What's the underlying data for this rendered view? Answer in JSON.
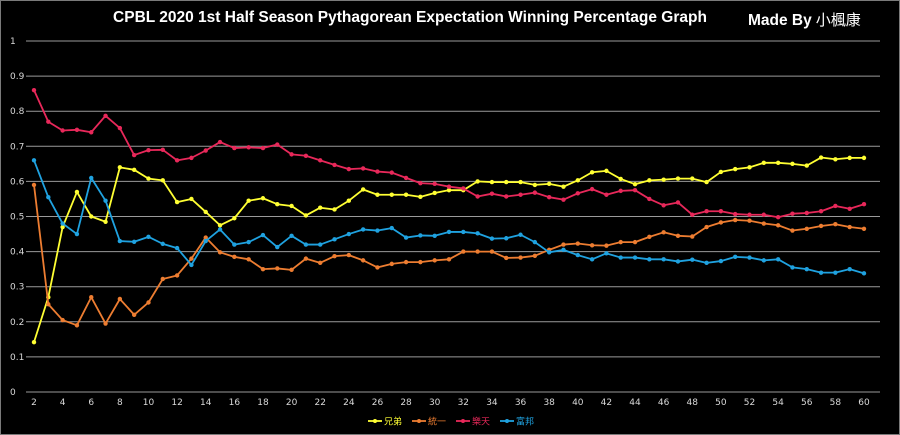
{
  "chart_data": {
    "type": "line",
    "title": "CPBL 2020 1st Half Season Pythagorean Expectation Winning Percentage Graph",
    "credit": "Made By",
    "credit_name": "小楓康",
    "xlabel": "",
    "ylabel": "",
    "ylim": [
      0,
      1
    ],
    "xlim": [
      2,
      60
    ],
    "grid": true,
    "legend_position": "bottom",
    "y_ticks": [
      "0",
      "0.1",
      "0.2",
      "0.3",
      "0.4",
      "0.5",
      "0.6",
      "0.7",
      "0.8",
      "0.9",
      "1"
    ],
    "x_ticks": [
      "2",
      "4",
      "6",
      "8",
      "10",
      "12",
      "14",
      "16",
      "18",
      "20",
      "22",
      "24",
      "26",
      "28",
      "30",
      "32",
      "34",
      "36",
      "38",
      "40",
      "42",
      "44",
      "46",
      "48",
      "50",
      "52",
      "54",
      "56",
      "58",
      "60"
    ],
    "x": [
      2,
      3,
      4,
      5,
      6,
      7,
      8,
      9,
      10,
      11,
      12,
      13,
      14,
      15,
      16,
      17,
      18,
      19,
      20,
      21,
      22,
      23,
      24,
      25,
      26,
      27,
      28,
      29,
      30,
      31,
      32,
      33,
      34,
      35,
      36,
      37,
      38,
      39,
      40,
      41,
      42,
      43,
      44,
      45,
      46,
      47,
      48,
      49,
      50,
      51,
      52,
      53,
      54,
      55,
      56,
      57,
      58,
      59,
      60
    ],
    "series": [
      {
        "name": "兄弟",
        "color": "#ffff33",
        "values": [
          0.142,
          0.27,
          0.47,
          0.57,
          0.5,
          0.485,
          0.64,
          0.633,
          0.608,
          0.603,
          0.541,
          0.55,
          0.513,
          0.475,
          0.495,
          0.545,
          0.552,
          0.535,
          0.53,
          0.503,
          0.525,
          0.52,
          0.545,
          0.577,
          0.562,
          0.562,
          0.562,
          0.556,
          0.567,
          0.575,
          0.575,
          0.6,
          0.598,
          0.598,
          0.598,
          0.59,
          0.593,
          0.585,
          0.603,
          0.626,
          0.63,
          0.607,
          0.592,
          0.603,
          0.605,
          0.608,
          0.608,
          0.598,
          0.627,
          0.635,
          0.64,
          0.653,
          0.653,
          0.65,
          0.645,
          0.668,
          0.663,
          0.667,
          0.667
        ]
      },
      {
        "name": "統一",
        "color": "#ed7d31",
        "values": [
          0.59,
          0.25,
          0.205,
          0.19,
          0.27,
          0.195,
          0.265,
          0.22,
          0.255,
          0.322,
          0.332,
          0.38,
          0.44,
          0.398,
          0.385,
          0.378,
          0.35,
          0.352,
          0.348,
          0.38,
          0.368,
          0.387,
          0.39,
          0.375,
          0.355,
          0.365,
          0.37,
          0.37,
          0.375,
          0.378,
          0.4,
          0.4,
          0.4,
          0.382,
          0.383,
          0.388,
          0.405,
          0.42,
          0.423,
          0.418,
          0.417,
          0.427,
          0.427,
          0.442,
          0.455,
          0.445,
          0.443,
          0.47,
          0.483,
          0.49,
          0.488,
          0.48,
          0.475,
          0.46,
          0.465,
          0.473,
          0.478,
          0.47,
          0.465
        ]
      },
      {
        "name": "樂天",
        "color": "#e8285a",
        "values": [
          0.86,
          0.77,
          0.745,
          0.747,
          0.74,
          0.787,
          0.752,
          0.675,
          0.689,
          0.69,
          0.66,
          0.667,
          0.688,
          0.712,
          0.695,
          0.697,
          0.695,
          0.705,
          0.677,
          0.673,
          0.66,
          0.647,
          0.635,
          0.637,
          0.628,
          0.625,
          0.61,
          0.595,
          0.593,
          0.585,
          0.58,
          0.557,
          0.565,
          0.557,
          0.562,
          0.568,
          0.555,
          0.548,
          0.566,
          0.578,
          0.562,
          0.573,
          0.575,
          0.55,
          0.532,
          0.54,
          0.505,
          0.515,
          0.515,
          0.507,
          0.505,
          0.505,
          0.498,
          0.508,
          0.51,
          0.515,
          0.53,
          0.522,
          0.535
        ]
      },
      {
        "name": "富邦",
        "color": "#1fa2e0",
        "values": [
          0.66,
          0.555,
          0.48,
          0.45,
          0.61,
          0.545,
          0.43,
          0.428,
          0.442,
          0.422,
          0.41,
          0.362,
          0.43,
          0.463,
          0.42,
          0.427,
          0.447,
          0.413,
          0.445,
          0.42,
          0.42,
          0.435,
          0.45,
          0.463,
          0.46,
          0.467,
          0.44,
          0.446,
          0.445,
          0.456,
          0.456,
          0.452,
          0.437,
          0.438,
          0.448,
          0.427,
          0.398,
          0.405,
          0.39,
          0.378,
          0.395,
          0.383,
          0.383,
          0.378,
          0.378,
          0.372,
          0.377,
          0.368,
          0.373,
          0.385,
          0.383,
          0.375,
          0.378,
          0.355,
          0.35,
          0.34,
          0.34,
          0.35,
          0.338
        ]
      }
    ]
  }
}
